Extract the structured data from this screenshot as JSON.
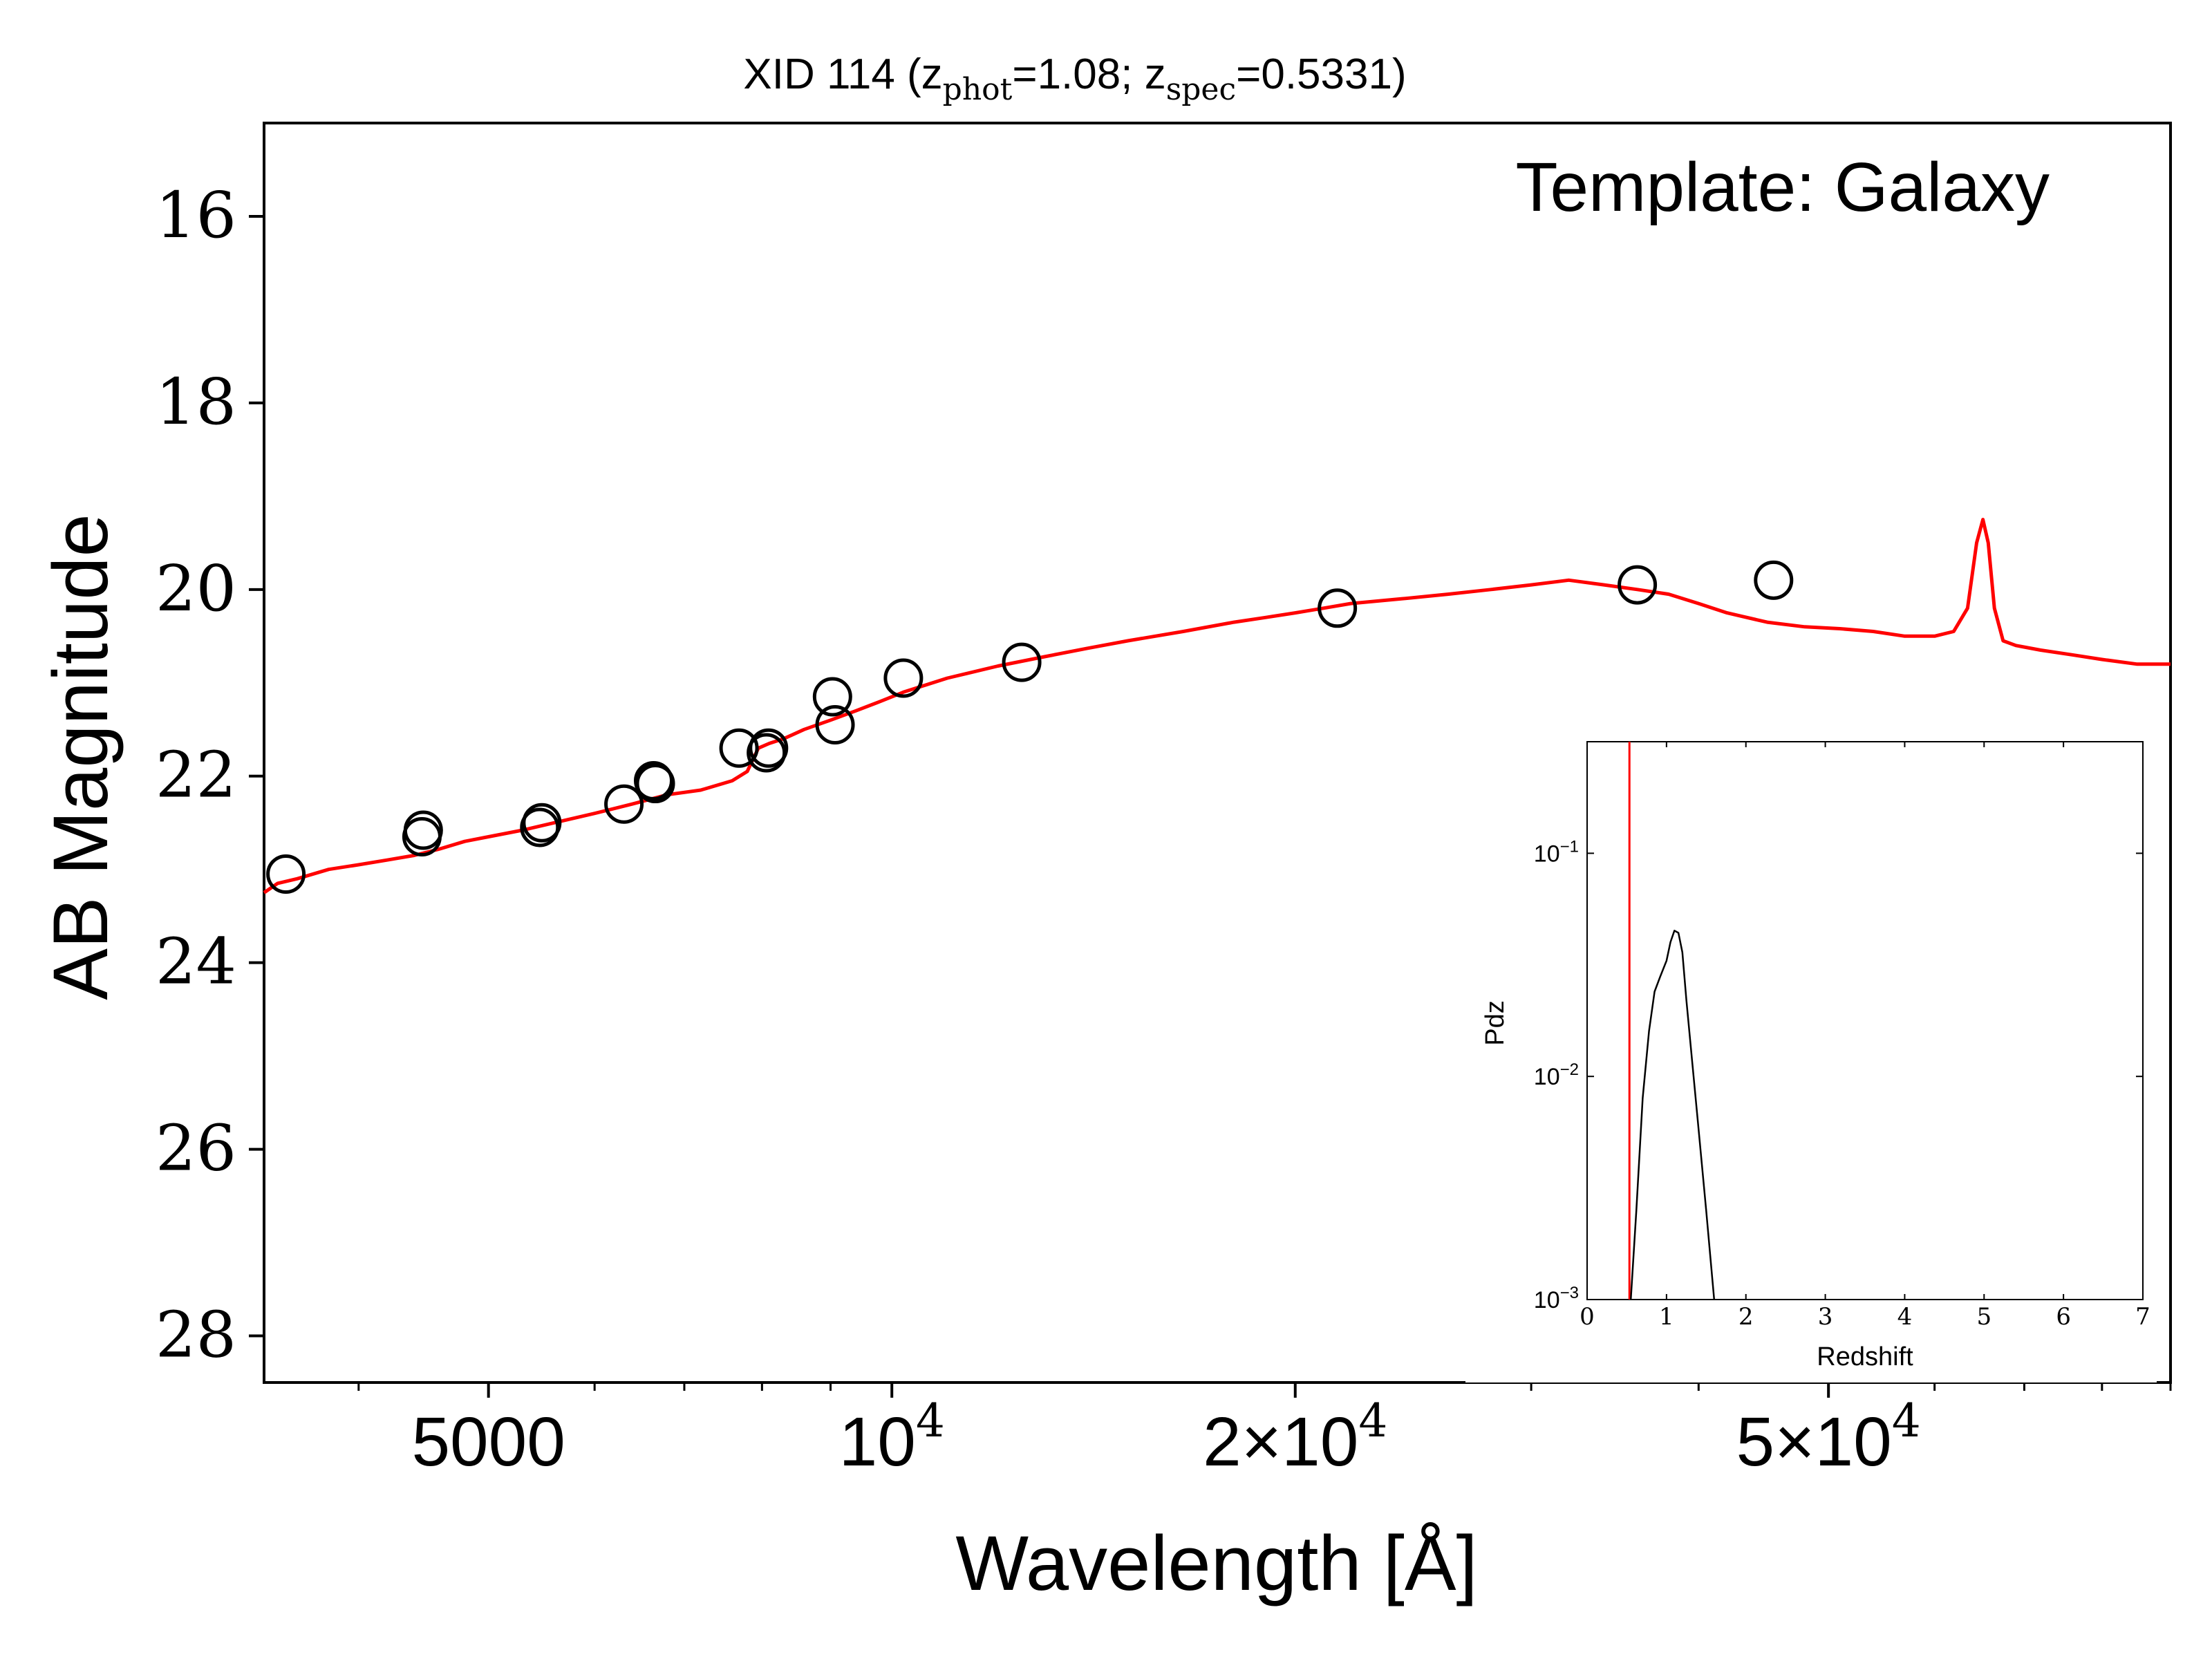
{
  "chart_data": [
    {
      "type": "line",
      "title_parts": {
        "prefix": "XID 114 (z",
        "phot_sub": "phot",
        "mid": "=1.08; z",
        "spec_sub": "spec",
        "suffix": "=0.5331)"
      },
      "annotation": "Template: Galaxy",
      "xlabel": "Wavelength [Å]",
      "ylabel": "AB Magnitude",
      "xscale": "log",
      "xlim": [
        3400,
        90000
      ],
      "ylim": [
        28.5,
        15
      ],
      "yticks": [
        "16",
        "18",
        "20",
        "22",
        "24",
        "26",
        "28"
      ],
      "xticks": [
        {
          "value": 5000,
          "base": "5000",
          "exp": ""
        },
        {
          "value": 10000,
          "base": "10",
          "exp": "4"
        },
        {
          "value": 20000,
          "base": "2×10",
          "exp": "4"
        },
        {
          "value": 50000,
          "base": "5×10",
          "exp": "4"
        }
      ],
      "series": [
        {
          "kind": "line",
          "color": "#ff0000",
          "x": [
            3400,
            3480,
            3600,
            3800,
            4000,
            4200,
            4400,
            4600,
            4800,
            5000,
            5300,
            5600,
            6000,
            6400,
            6800,
            7200,
            7600,
            7800,
            7950,
            8100,
            8300,
            8600,
            9000,
            9400,
            9800,
            10200,
            11000,
            12000,
            13000,
            14000,
            15000,
            16500,
            18000,
            19000,
            20000,
            21000,
            22000,
            24000,
            26000,
            28000,
            30000,
            32000,
            34000,
            36000,
            38000,
            40000,
            42000,
            45000,
            48000,
            51000,
            54000,
            57000,
            60000,
            62000,
            63500,
            64500,
            65200,
            65800,
            66500,
            67500,
            69000,
            72000,
            76000,
            80000,
            85000,
            90000
          ],
          "y": [
            23.25,
            23.15,
            23.1,
            23.0,
            22.95,
            22.9,
            22.85,
            22.78,
            22.7,
            22.65,
            22.58,
            22.5,
            22.4,
            22.3,
            22.2,
            22.15,
            22.05,
            21.95,
            21.7,
            21.65,
            21.6,
            21.5,
            21.4,
            21.3,
            21.2,
            21.1,
            20.95,
            20.82,
            20.72,
            20.63,
            20.55,
            20.45,
            20.35,
            20.3,
            20.25,
            20.2,
            20.15,
            20.1,
            20.05,
            20.0,
            19.95,
            19.9,
            19.95,
            20.0,
            20.05,
            20.15,
            20.25,
            20.35,
            20.4,
            20.42,
            20.45,
            20.5,
            20.5,
            20.45,
            20.2,
            19.5,
            19.25,
            19.5,
            20.2,
            20.55,
            20.6,
            20.65,
            20.7,
            20.75,
            20.8,
            20.8
          ]
        },
        {
          "kind": "scatter",
          "marker": "open-circle",
          "x": [
            3530,
            4460,
            4470,
            5460,
            5480,
            6310,
            6640,
            6660,
            7690,
            8060,
            8090,
            9030,
            9070,
            10200,
            12500,
            21500,
            36000,
            45500
          ],
          "y": [
            23.05,
            22.65,
            22.58,
            22.55,
            22.5,
            22.3,
            22.05,
            22.08,
            21.7,
            21.75,
            21.7,
            21.15,
            21.45,
            20.95,
            20.78,
            20.2,
            19.95,
            19.9
          ]
        }
      ]
    },
    {
      "type": "line",
      "inset": true,
      "xlabel": "Redshift",
      "ylabel": "Pdz",
      "xlim": [
        0,
        7
      ],
      "ylim_log10": [
        -3,
        -0.5
      ],
      "xticks": [
        "0",
        "1",
        "2",
        "3",
        "4",
        "5",
        "6",
        "7"
      ],
      "yticks": [
        {
          "value": -1,
          "base": "10",
          "exp": "−1"
        },
        {
          "value": -2,
          "base": "10",
          "exp": "−2"
        },
        {
          "value": -3,
          "base": "10",
          "exp": "−3"
        }
      ],
      "vline": {
        "x": 0.5331,
        "color": "#ff0000"
      },
      "series": [
        {
          "kind": "line",
          "color": "#000000",
          "x": [
            0.55,
            0.62,
            0.7,
            0.78,
            0.85,
            0.92,
            1.0,
            1.05,
            1.1,
            1.15,
            1.2,
            1.25,
            1.32,
            1.4,
            1.5,
            1.6
          ],
          "y": [
            0.001,
            0.0025,
            0.008,
            0.016,
            0.024,
            0.028,
            0.033,
            0.04,
            0.045,
            0.044,
            0.036,
            0.022,
            0.012,
            0.006,
            0.0025,
            0.001
          ]
        }
      ]
    }
  ]
}
